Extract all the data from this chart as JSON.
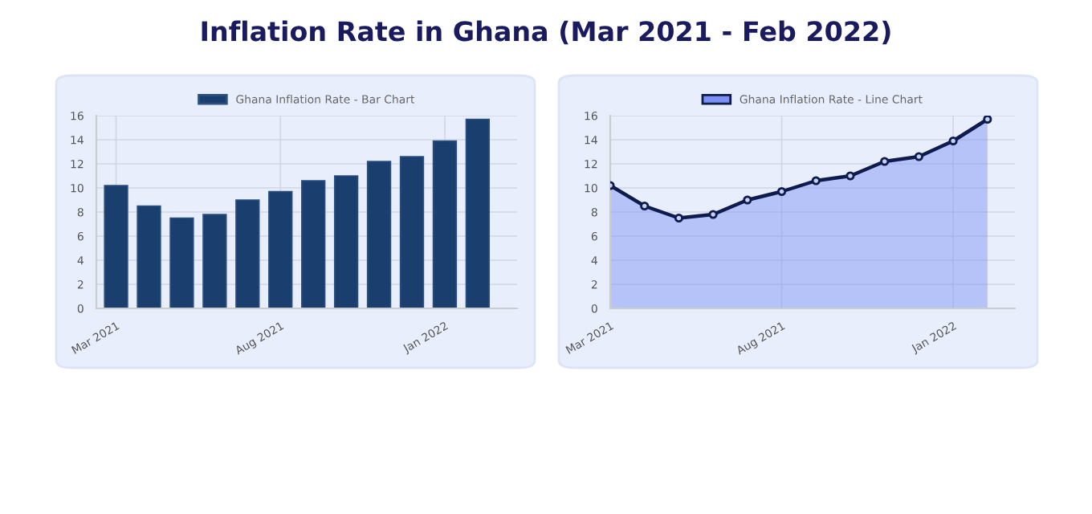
{
  "chart_data": [
    {
      "type": "bar",
      "title": "Inflation Rate in Ghana (Mar 2021 - Feb 2022)",
      "categories": [
        "Mar 2021",
        null,
        null,
        null,
        null,
        "Aug 2021",
        null,
        null,
        null,
        null,
        "Jan 2022",
        null
      ],
      "series": [
        {
          "name": "Ghana Inflation Rate - Bar Chart",
          "color": "#1a3f6e",
          "values": [
            10.2,
            8.5,
            7.5,
            7.8,
            9.0,
            9.7,
            10.6,
            11.0,
            12.2,
            12.6,
            13.9,
            15.7
          ]
        }
      ],
      "ylim": [
        0,
        16
      ],
      "yticks": [
        0,
        2,
        4,
        6,
        8,
        10,
        12,
        14,
        16
      ],
      "grid": true,
      "legend": "top"
    },
    {
      "type": "area",
      "categories": [
        "Mar 2021",
        null,
        null,
        null,
        null,
        "Aug 2021",
        null,
        null,
        null,
        null,
        "Jan 2022",
        null
      ],
      "series": [
        {
          "name": "Ghana Inflation Rate - Line Chart",
          "color": "#7b8ff5",
          "values": [
            10.2,
            8.5,
            7.5,
            7.8,
            9.0,
            9.7,
            10.6,
            11.0,
            12.2,
            12.6,
            13.9,
            15.7
          ]
        }
      ],
      "ylim": [
        0,
        16
      ],
      "yticks": [
        0,
        2,
        4,
        6,
        8,
        10,
        12,
        14,
        16
      ],
      "grid": true,
      "legend": "top",
      "marker": "circle"
    }
  ]
}
